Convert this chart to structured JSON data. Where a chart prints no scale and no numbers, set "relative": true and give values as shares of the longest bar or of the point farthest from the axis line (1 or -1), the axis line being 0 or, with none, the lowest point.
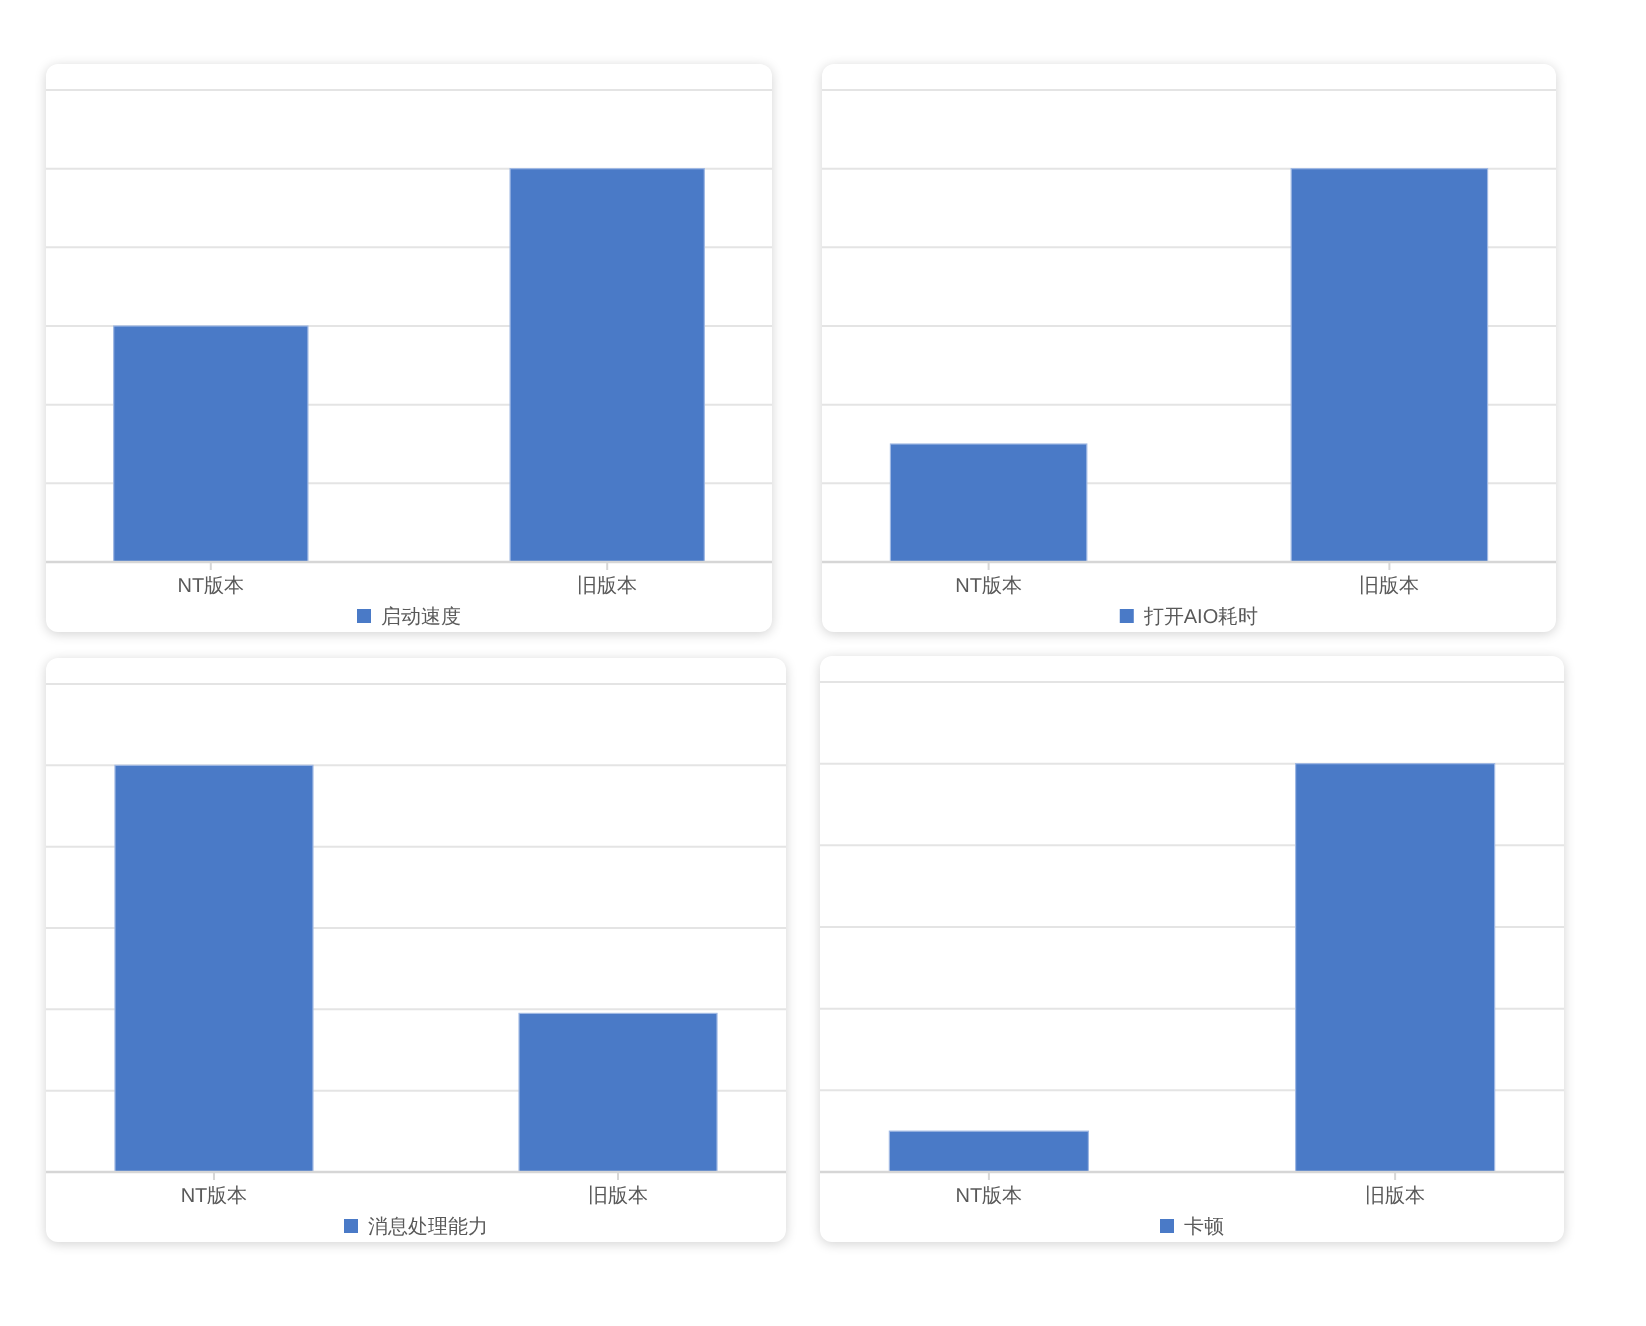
{
  "chart_data": [
    {
      "type": "bar",
      "categories": [
        "NT版本",
        "旧版本"
      ],
      "series": [
        {
          "name": "启动速度",
          "color": "#4a7ac7",
          "values": [
            0.6,
            1
          ]
        }
      ],
      "relative": true,
      "grid": "y",
      "legend": "bottom"
    },
    {
      "type": "bar",
      "categories": [
        "NT版本",
        "旧版本"
      ],
      "series": [
        {
          "name": "打开AIO耗时",
          "color": "#4a7ac7",
          "values": [
            0.3,
            1
          ]
        }
      ],
      "relative": true,
      "grid": "y",
      "legend": "bottom"
    },
    {
      "type": "bar",
      "categories": [
        "NT版本",
        "旧版本"
      ],
      "series": [
        {
          "name": "消息处理能力",
          "color": "#4a7ac7",
          "values": [
            1,
            0.39
          ]
        }
      ],
      "relative": true,
      "grid": "y",
      "legend": "bottom"
    },
    {
      "type": "bar",
      "categories": [
        "NT版本",
        "旧版本"
      ],
      "series": [
        {
          "name": "卡顿",
          "color": "#4a7ac7",
          "values": [
            0.1,
            1
          ]
        }
      ],
      "relative": true,
      "grid": "y",
      "legend": "bottom"
    }
  ]
}
